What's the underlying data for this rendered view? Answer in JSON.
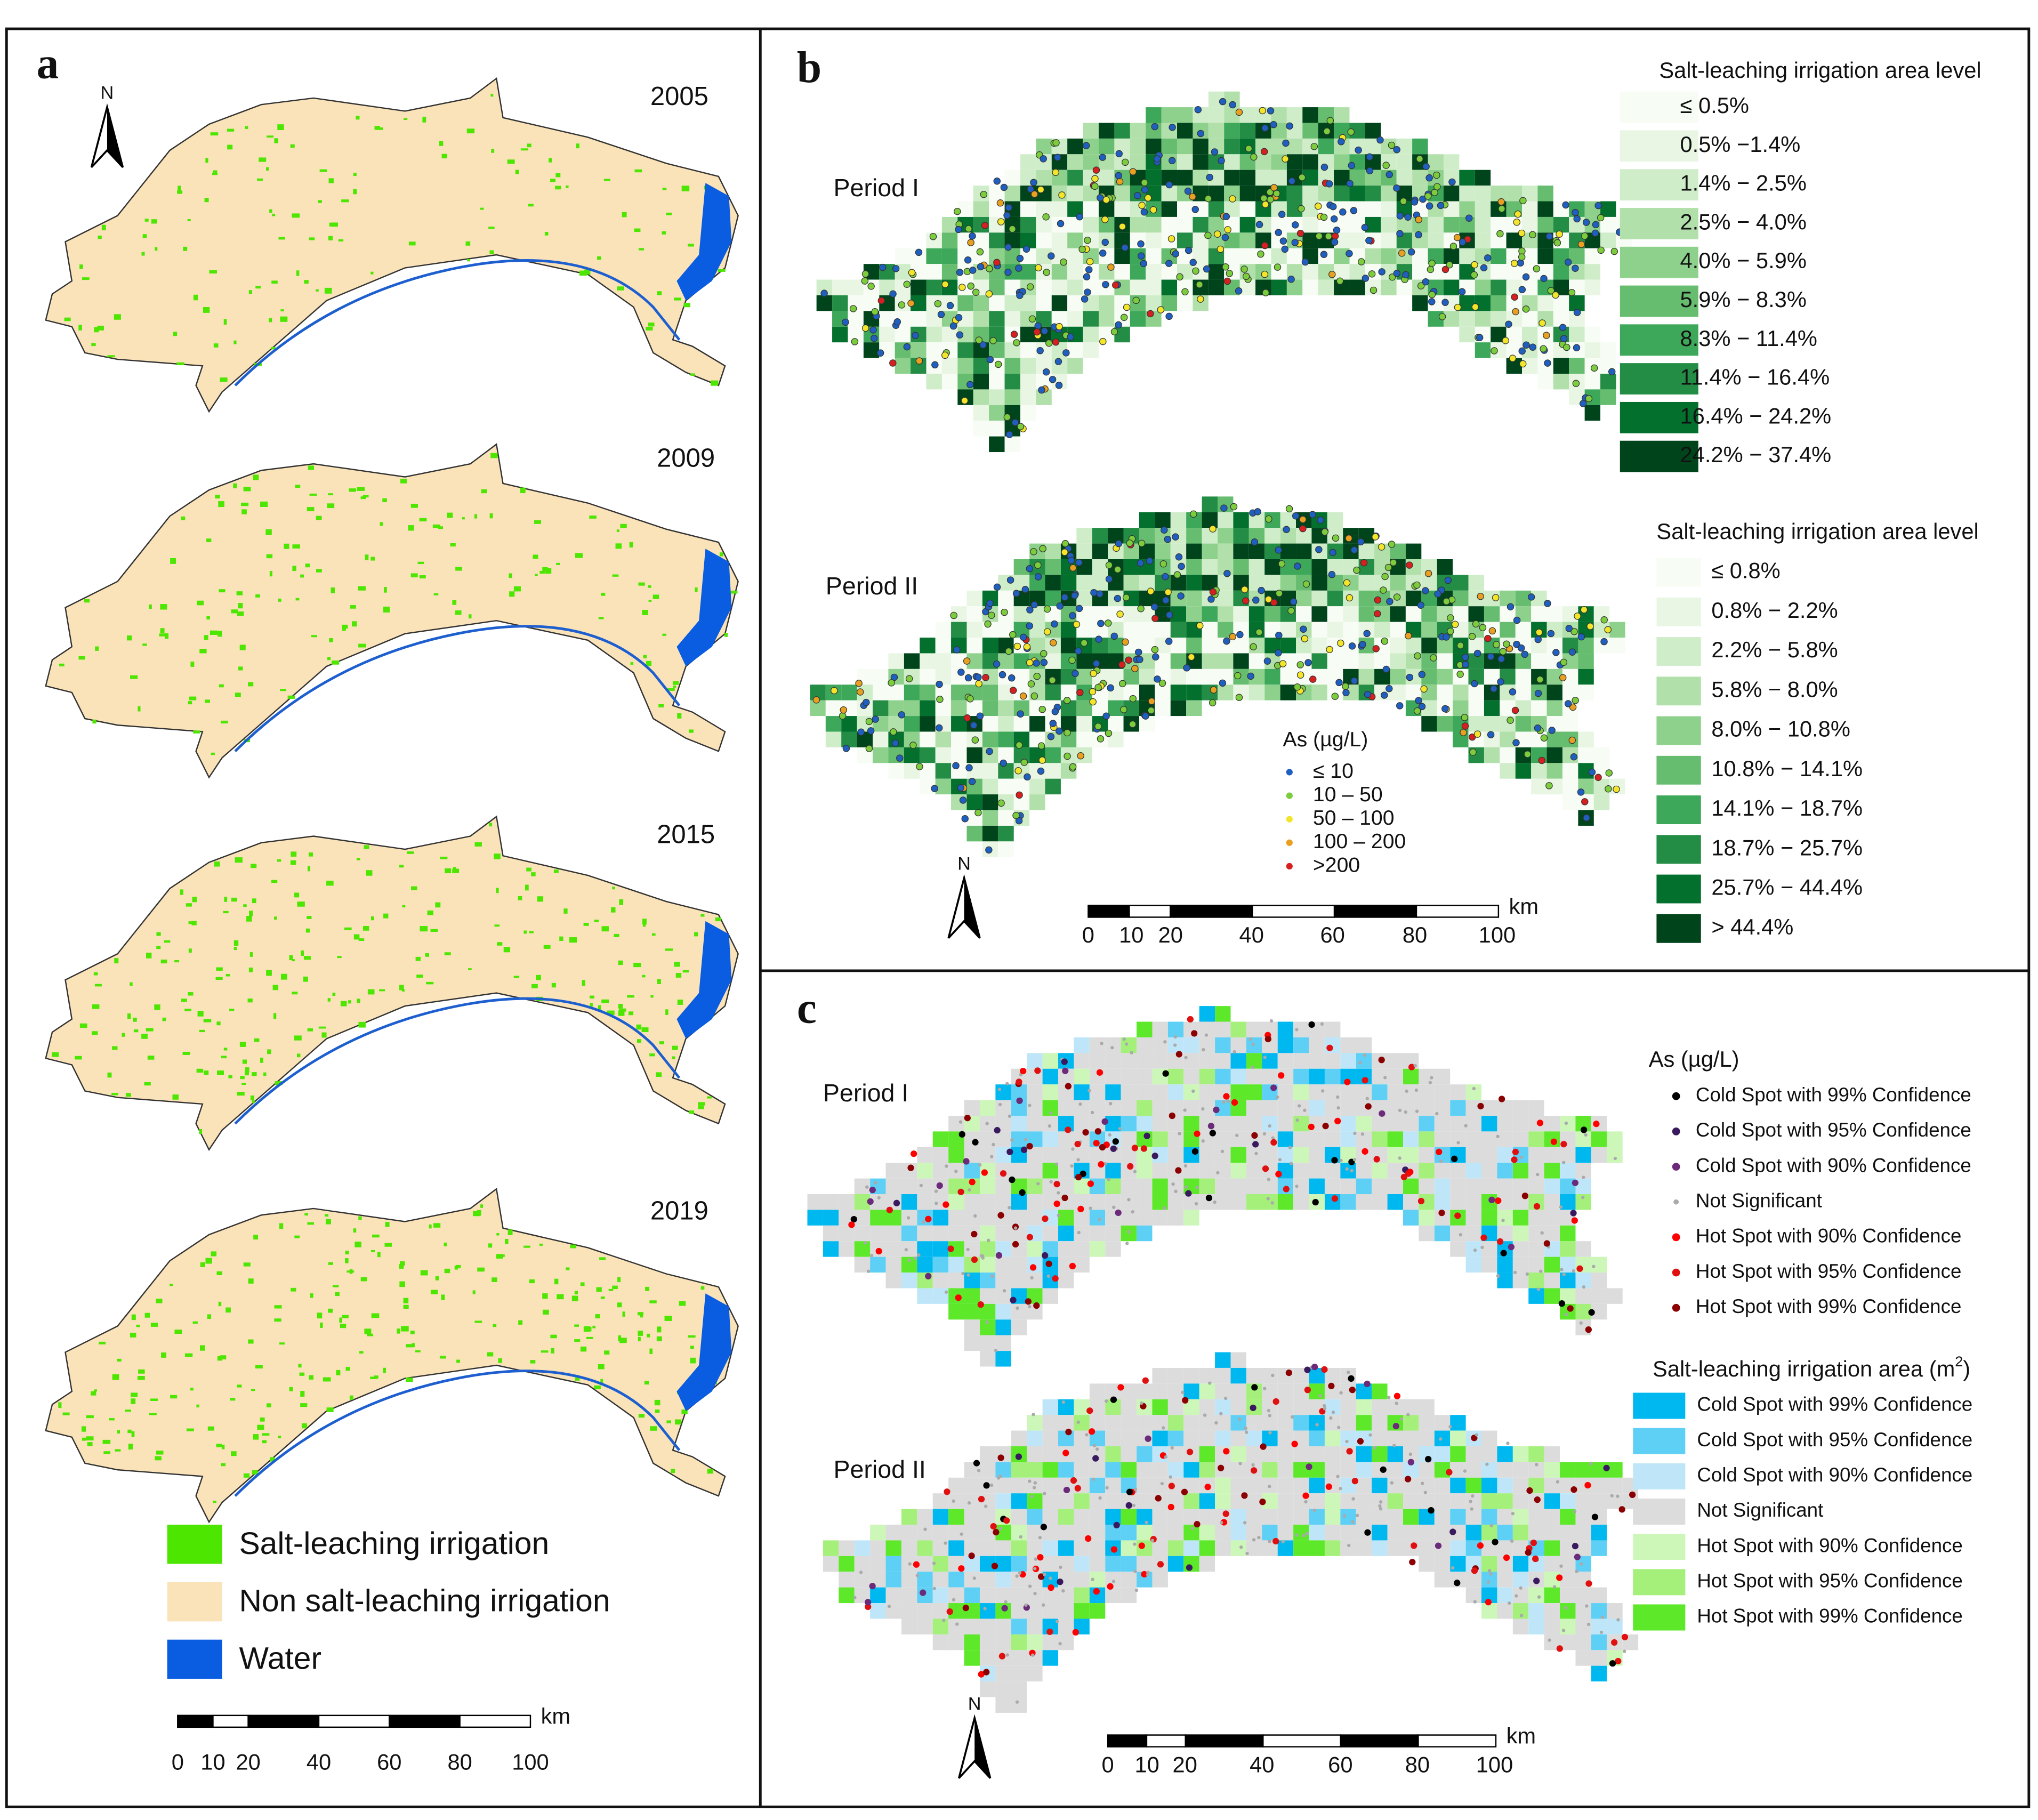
{
  "panel_a": {
    "label": "a",
    "years": [
      "2005",
      "2009",
      "2015",
      "2019"
    ],
    "north": "N",
    "legend": [
      "Salt-leaching irrigation",
      "Non salt-leaching irrigation",
      "Water"
    ],
    "scale": {
      "unit": "km",
      "ticks": [
        "0",
        "10",
        "20",
        "40",
        "60",
        "80",
        "100"
      ]
    }
  },
  "panel_b": {
    "label": "b",
    "periods": [
      "Period I",
      "Period II"
    ],
    "north": "N",
    "legend_1": {
      "title": "Salt-leaching irrigation area level",
      "items": [
        "≤ 0.5%",
        "0.5% −1.4%",
        "1.4% − 2.5%",
        "2.5% − 4.0%",
        "4.0% − 5.9%",
        "5.9% − 8.3%",
        "8.3% − 11.4%",
        "11.4% − 16.4%",
        "16.4% − 24.2%",
        "24.2% − 37.4%"
      ]
    },
    "legend_2": {
      "title": "Salt-leaching irrigation area level",
      "items": [
        "≤ 0.8%",
        "0.8% − 2.2%",
        "2.2% − 5.8%",
        "5.8% − 8.0%",
        "8.0% − 10.8%",
        "10.8% − 14.1%",
        "14.1% − 18.7%",
        "18.7% − 25.7%",
        "25.7% − 44.4%",
        "> 44.4%"
      ]
    },
    "points_legend": {
      "title": "As (µg/L)",
      "items": [
        "≤ 10",
        "10 – 50",
        "50 – 100",
        "100 – 200",
        ">200"
      ]
    },
    "scale": {
      "unit": "km",
      "ticks": [
        "0",
        "10",
        "20",
        "40",
        "60",
        "80",
        "100"
      ]
    }
  },
  "panel_c": {
    "label": "c",
    "periods": [
      "Period I",
      "Period II"
    ],
    "north": "N",
    "legend_1": {
      "title": "As (µg/L)",
      "items": [
        "Cold Spot with 99% Confidence",
        "Cold Spot with 95% Confidence",
        "Cold Spot with 90% Confidence",
        "Not Significant",
        "Hot Spot with 90% Confidence",
        "Hot Spot with 95% Confidence",
        "Hot Spot with 99% Confidence"
      ]
    },
    "legend_2": {
      "title": "Salt-leaching irrigation area (m",
      "title_sup": "2",
      "title_end": ")",
      "items": [
        "Cold Spot with 99% Confidence",
        "Cold Spot with 95% Confidence",
        "Cold Spot with 90% Confidence",
        "Not Significant",
        "Hot Spot with 90% Confidence",
        "Hot Spot with 95% Confidence",
        "Hot Spot with 99% Confidence"
      ]
    },
    "scale": {
      "unit": "km",
      "ticks": [
        "0",
        "10",
        "20",
        "40",
        "60",
        "80",
        "100"
      ]
    }
  }
}
